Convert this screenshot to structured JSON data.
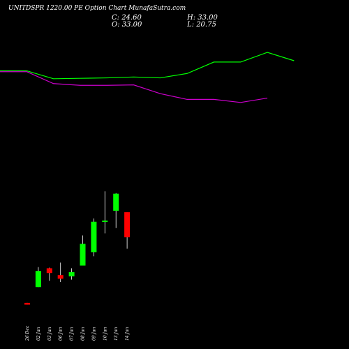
{
  "header": {
    "title": "UNITDSPR 1220.00 PE Option Chart MunafaSutra.com",
    "close": "C: 24.60",
    "open": "O: 33.00",
    "high": "H: 33.00",
    "low": "L: 20.75"
  },
  "colors": {
    "background": "#000000",
    "text": "#ffffff",
    "bull": "#00ff00",
    "bear": "#ff0000",
    "neutral": "#ffffff",
    "upper_line": "#00ff00",
    "lower_line": "#cc00cc"
  },
  "chart_data": {
    "type": "candlestick",
    "dates": [
      "26 Dec",
      "02 Jan",
      "03 Jan",
      "06 Jan",
      "07 Jan",
      "08 Jan",
      "09 Jan",
      "10 Jan",
      "13 Jan",
      "14 Jan"
    ],
    "ohlc": [
      {
        "o": 2.6,
        "h": 2.6,
        "l": 2.0,
        "c": 2.0
      },
      {
        "o": 7.9,
        "h": 14.6,
        "l": 7.9,
        "c": 13.3
      },
      {
        "o": 14.2,
        "h": 14.4,
        "l": 10.0,
        "c": 12.6
      },
      {
        "o": 11.9,
        "h": 16.1,
        "l": 9.6,
        "c": 10.7
      },
      {
        "o": 11.5,
        "h": 14.2,
        "l": 10.4,
        "c": 12.9
      },
      {
        "o": 15.1,
        "h": 25.2,
        "l": 15.1,
        "c": 22.4
      },
      {
        "o": 19.6,
        "h": 30.9,
        "l": 18.2,
        "c": 29.8
      },
      {
        "o": 29.9,
        "h": 40.0,
        "l": 25.9,
        "c": 30.2
      },
      {
        "o": 33.5,
        "h": 39.4,
        "l": 27.7,
        "c": 39.2
      },
      {
        "o": 33.0,
        "h": 33.0,
        "l": 20.75,
        "c": 24.6
      }
    ],
    "y_range": [
      0,
      48
    ],
    "lines": [
      {
        "color": "#00ff00",
        "points": [
          62,
          62,
          60.2,
          60.3,
          60.4,
          60.6,
          60.4,
          61.4,
          64,
          64,
          66.2,
          64.3
        ]
      },
      {
        "color": "#cc00cc",
        "points": [
          61.8,
          61.8,
          59.1,
          58.7,
          58.7,
          58.8,
          56.8,
          55.5,
          55.5,
          54.8,
          55.8
        ]
      }
    ],
    "line_range": [
      40,
      67
    ]
  }
}
